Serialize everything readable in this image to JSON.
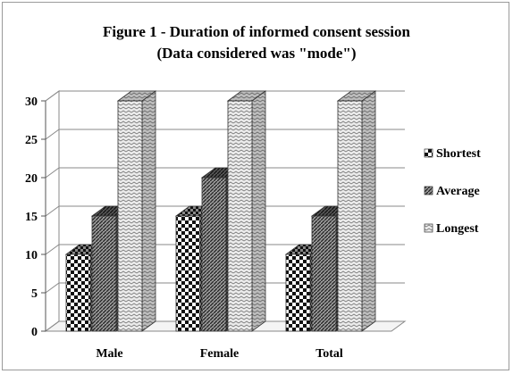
{
  "chart_data": {
    "type": "bar",
    "title": "Figure 1 - Duration of informed consent session",
    "subtitle": "(Data considered was \"mode\")",
    "categories": [
      "Male",
      "Female",
      "Total"
    ],
    "series": [
      {
        "name": "Shortest",
        "values": [
          10,
          15,
          10
        ]
      },
      {
        "name": "Average",
        "values": [
          15,
          20,
          15
        ]
      },
      {
        "name": "Longest",
        "values": [
          30,
          30,
          30
        ]
      }
    ],
    "ylim": [
      0,
      30
    ],
    "yticks": [
      0,
      5,
      10,
      15,
      20,
      25,
      30
    ],
    "grid": true,
    "legend_position": "right",
    "style": "3d-column"
  }
}
